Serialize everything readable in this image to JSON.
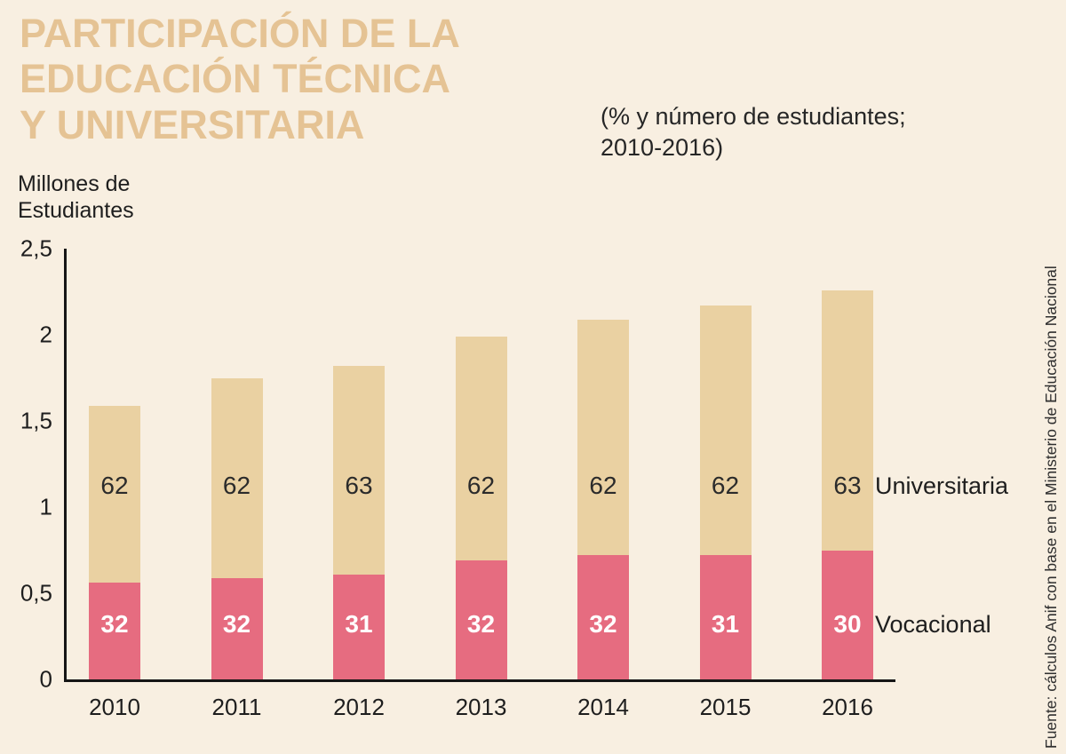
{
  "title": {
    "lines": [
      "PARTICIPACIÓN DE LA",
      "EDUCACIÓN TÉCNICA",
      "Y UNIVERSITARIA"
    ]
  },
  "subtitle": {
    "lines": [
      "(% y número de estudiantes;",
      "2010-2016)"
    ]
  },
  "y_axis_unit": {
    "lines": [
      "Millones de",
      "Estudiantes"
    ]
  },
  "series_labels": {
    "universitaria": "Universitaria",
    "vocacional": "Vocacional"
  },
  "source": "Fuente: cálculos Anif con base en el Ministerio de Educación Nacional",
  "colors": {
    "background": "#f8efe1",
    "title": "#e5c394",
    "bar_universitaria": "#ead1a2",
    "bar_vocacional": "#e66c80",
    "axis": "#161616",
    "text": "#1e1e1e",
    "pct_voc_text": "#ffffff"
  },
  "chart_data": {
    "type": "bar",
    "stacked": true,
    "title": "Participación de la educación técnica y universitaria (% y número de estudiantes; 2010-2016)",
    "xlabel": "",
    "ylabel": "Millones de Estudiantes",
    "ylim": [
      0,
      2.5
    ],
    "yticks": [
      "0",
      "0,5",
      "1",
      "1,5",
      "2",
      "2,5"
    ],
    "ytick_values": [
      0,
      0.5,
      1,
      1.5,
      2,
      2.5
    ],
    "categories": [
      "2010",
      "2011",
      "2012",
      "2013",
      "2014",
      "2015",
      "2016"
    ],
    "series": [
      {
        "name": "Vocacional",
        "color": "#e66c80",
        "values": [
          0.56,
          0.59,
          0.61,
          0.69,
          0.72,
          0.72,
          0.75
        ],
        "percent_labels": [
          "32",
          "32",
          "31",
          "32",
          "32",
          "31",
          "30"
        ]
      },
      {
        "name": "Universitaria",
        "color": "#ead1a2",
        "values": [
          1.03,
          1.16,
          1.21,
          1.3,
          1.37,
          1.45,
          1.51
        ],
        "percent_labels": [
          "62",
          "62",
          "63",
          "62",
          "62",
          "62",
          "63"
        ]
      }
    ],
    "totals": [
      1.59,
      1.75,
      1.82,
      1.99,
      2.09,
      2.17,
      2.26
    ],
    "legend_position": "right-of-last-bar",
    "grid": false
  }
}
